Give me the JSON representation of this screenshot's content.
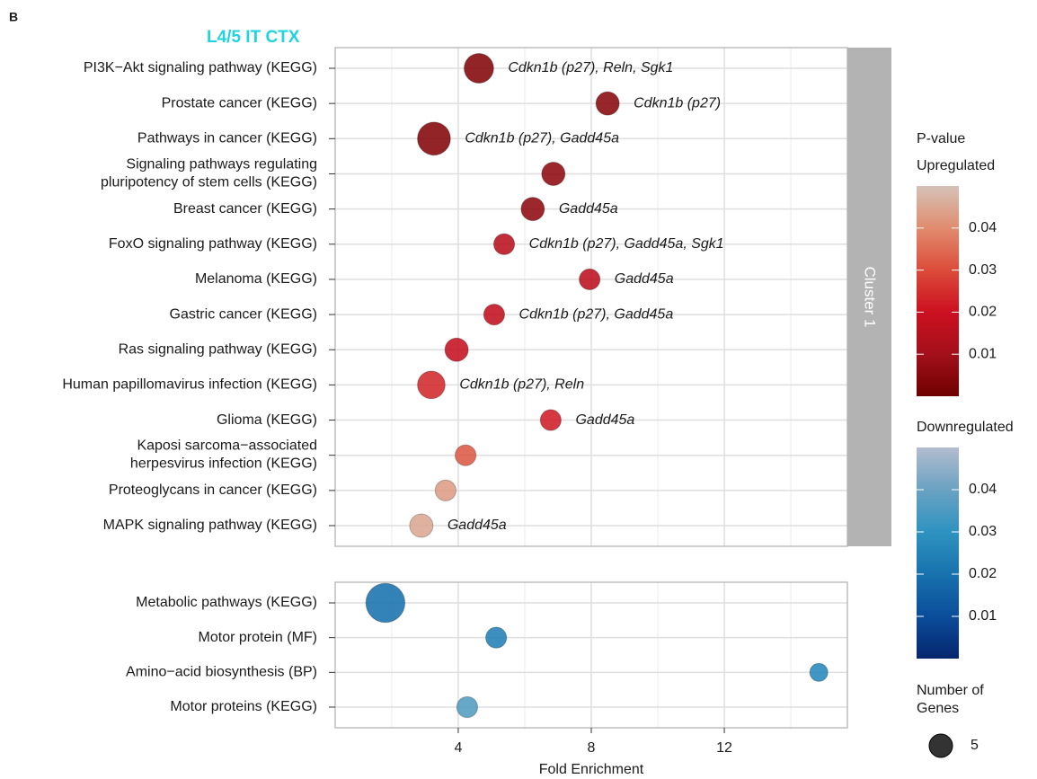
{
  "chart_data": {
    "type": "scatter",
    "panel_label": "B",
    "title": "L4/5 IT CTX",
    "x_label": "Fold Enrichment",
    "xlim": [
      0.3,
      15.7
    ],
    "xticks": [
      4,
      8,
      12
    ],
    "grid": true,
    "minor_grid": true,
    "panels": [
      {
        "strip": "Cluster 1",
        "color_scale": 0,
        "categories": [
          "PI3K−Akt signaling pathway (KEGG)",
          "Prostate cancer (KEGG)",
          "Pathways in cancer (KEGG)",
          "Signaling pathways regulating\npluripotency of stem cells (KEGG)",
          "Breast cancer (KEGG)",
          "FoxO signaling pathway (KEGG)",
          "Melanoma (KEGG)",
          "Gastric cancer (KEGG)",
          "Ras signaling pathway (KEGG)",
          "Human papillomavirus infection (KEGG)",
          "Glioma (KEGG)",
          "Kaposi sarcoma−associated\nherpesvirus infection (KEGG)",
          "Proteoglycans in cancer (KEGG)",
          "MAPK signaling pathway (KEGG)"
        ],
        "x": [
          4.62,
          8.49,
          3.27,
          6.86,
          6.24,
          5.38,
          7.95,
          5.08,
          3.95,
          3.19,
          6.78,
          4.22,
          3.62,
          2.89
        ],
        "pvalues": [
          0.004,
          0.005,
          0.004,
          0.006,
          0.006,
          0.015,
          0.016,
          0.017,
          0.018,
          0.024,
          0.022,
          0.032,
          0.043,
          0.045
        ],
        "sizes": [
          8,
          5,
          10,
          5,
          5,
          4,
          4,
          4,
          5,
          7,
          4,
          4,
          4,
          5
        ],
        "annotations": [
          "Cdkn1b (p27), Reln, Sgk1",
          "Cdkn1b (p27)",
          "Cdkn1b (p27), Gadd45a",
          null,
          "Gadd45a",
          "Cdkn1b (p27), Gadd45a, Sgk1",
          "Gadd45a",
          "Cdkn1b (p27), Gadd45a",
          null,
          "Cdkn1b (p27), Reln",
          "Gadd45a",
          null,
          null,
          "Gadd45a"
        ]
      },
      {
        "strip": null,
        "color_scale": 1,
        "categories": [
          "Metabolic pathways (KEGG)",
          "Motor protein (MF)",
          "Amino−acid biosynthesis (BP)",
          "Motor proteins (KEGG)"
        ],
        "x": [
          1.81,
          5.14,
          14.84,
          4.27
        ],
        "pvalues": [
          0.02,
          0.024,
          0.027,
          0.036
        ],
        "sizes": [
          14,
          4,
          3,
          4
        ],
        "annotations": [
          null,
          null,
          null,
          null
        ]
      }
    ],
    "color_legend": {
      "title": "P-value",
      "lim": [
        0,
        0.05
      ],
      "ticks": [
        0.01,
        0.02,
        0.03,
        0.04
      ],
      "scales": [
        {
          "name": "Upregulated",
          "colors": [
            "#6e0000",
            "#a3101a",
            "#cc1020",
            "#dc4c3a",
            "#e08c6e",
            "#d6c2b8"
          ]
        },
        {
          "name": "Downregulated",
          "colors": [
            "#06256e",
            "#0b4d9a",
            "#1872ae",
            "#2e93c0",
            "#6aa2c2",
            "#b3bccf"
          ]
        }
      ]
    },
    "size_legend": {
      "title": "Number of\nGenes",
      "values": [
        5
      ]
    }
  }
}
